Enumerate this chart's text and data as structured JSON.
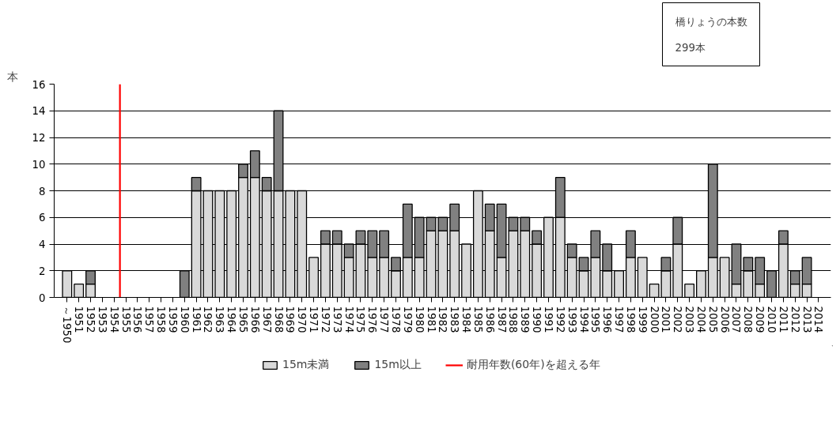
{
  "chart_data": {
    "type": "bar",
    "stacked": true,
    "ylabel": "本",
    "annotations": [
      "橋りょうの本数",
      "299本"
    ],
    "categories": [
      "～1950",
      "1951",
      "1952",
      "1953",
      "1954",
      "1955",
      "1956",
      "1957",
      "1958",
      "1959",
      "1960",
      "1961",
      "1962",
      "1963",
      "1964",
      "1965",
      "1966",
      "1967",
      "1968",
      "1969",
      "1970",
      "1971",
      "1972",
      "1973",
      "1974",
      "1975",
      "1976",
      "1977",
      "1978",
      "1979",
      "1980",
      "1981",
      "1982",
      "1983",
      "1984",
      "1985",
      "1986",
      "1987",
      "1988",
      "1989",
      "1990",
      "1991",
      "1992",
      "1993",
      "1994",
      "1995",
      "1996",
      "1997",
      "1998",
      "1999",
      "2000",
      "2001",
      "2002",
      "2003",
      "2004",
      "2005",
      "2006",
      "2007",
      "2008",
      "2009",
      "2010",
      "2011",
      "2012",
      "2013",
      "2014"
    ],
    "series": [
      {
        "name": "15m未満",
        "color": "#d9d9d9",
        "values": [
          2,
          1,
          1,
          0,
          0,
          0,
          0,
          0,
          0,
          0,
          0,
          8,
          8,
          8,
          8,
          9,
          9,
          8,
          8,
          8,
          8,
          3,
          4,
          4,
          3,
          4,
          3,
          3,
          2,
          3,
          3,
          5,
          5,
          5,
          4,
          8,
          5,
          3,
          5,
          5,
          4,
          6,
          6,
          3,
          2,
          3,
          2,
          2,
          3,
          3,
          1,
          2,
          4,
          1,
          2,
          3,
          3,
          1,
          2,
          1,
          0,
          4,
          1,
          1,
          0
        ]
      },
      {
        "name": "15m以上",
        "color": "#808080",
        "values": [
          0,
          0,
          1,
          0,
          0,
          0,
          0,
          0,
          0,
          0,
          2,
          1,
          0,
          0,
          0,
          1,
          2,
          1,
          6,
          0,
          0,
          0,
          1,
          1,
          1,
          1,
          2,
          2,
          1,
          4,
          3,
          1,
          1,
          2,
          0,
          0,
          2,
          4,
          1,
          1,
          1,
          0,
          3,
          1,
          1,
          2,
          2,
          0,
          2,
          0,
          0,
          1,
          2,
          0,
          0,
          7,
          0,
          3,
          1,
          2,
          2,
          1,
          1,
          2,
          0
        ]
      }
    ],
    "ref_lines": [
      {
        "axis": "x",
        "value": "1955",
        "label": "耐用年数(60年)を超える年",
        "color": "#ff0000"
      }
    ],
    "ylim": [
      0,
      16
    ],
    "yticks": [
      0,
      2,
      4,
      6,
      8,
      10,
      12,
      14,
      16
    ],
    "grid": "y",
    "legend": "bottom"
  }
}
